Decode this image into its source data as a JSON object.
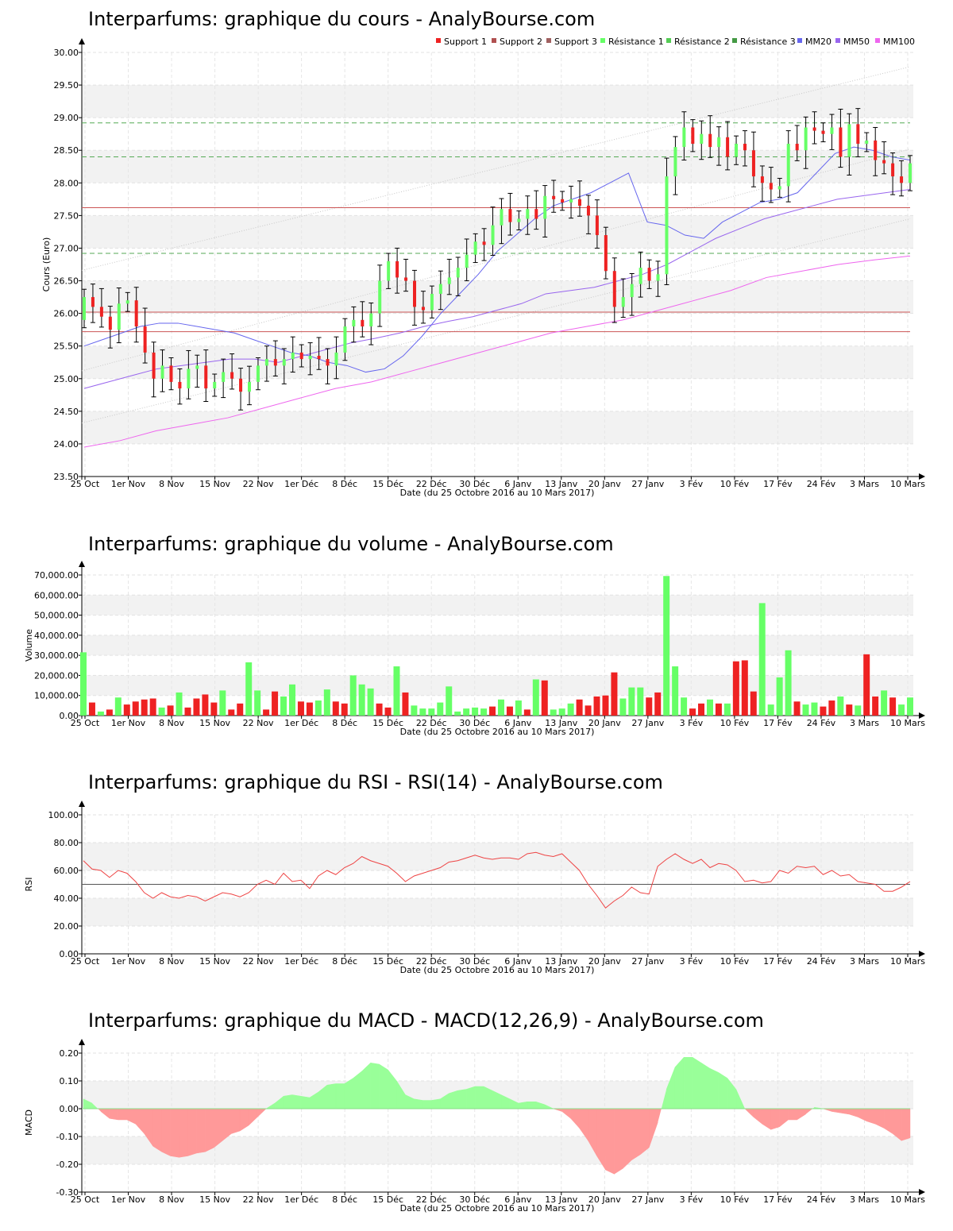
{
  "x_axis": {
    "tick_labels": [
      "25 Oct",
      "1er Nov",
      "8 Nov",
      "15 Nov",
      "22 Nov",
      "1er Déc",
      "8 Déc",
      "15 Déc",
      "22 Déc",
      "30 Déc",
      "6 Janv",
      "13 Janv",
      "20 Janv",
      "27 Janv",
      "3 Fév",
      "10 Fév",
      "17 Fév",
      "24 Fév",
      "3 Mars",
      "10 Mars"
    ],
    "label": "Date (du 25 Octobre 2016 au 10 Mars 2017)"
  },
  "colors": {
    "up": "#66ff66",
    "down": "#ee2222",
    "mm20": "#6666ee",
    "mm50": "#9966ee",
    "mm100": "#ee66ee",
    "support": "#cc5555",
    "resistance": "#55aa55",
    "macd_pos": "#99ff99",
    "macd_neg": "#ff9999",
    "rsi": "#ee4444"
  },
  "chart_data": [
    {
      "type": "candlestick",
      "title": "Interparfums: graphique du cours - AnalyBourse.com",
      "ylabel": "Cours (Euro)",
      "xlabel": "Date (du 25 Octobre 2016 au 10 Mars 2017)",
      "ylim": [
        23.5,
        30.0
      ],
      "yticks": [
        "23.50",
        "24.00",
        "24.50",
        "25.00",
        "25.50",
        "26.00",
        "26.50",
        "27.00",
        "27.50",
        "28.00",
        "28.50",
        "29.00",
        "29.50",
        "30.00"
      ],
      "legend": [
        "Support 1",
        "Support 2",
        "Support 3",
        "Résistance 1",
        "Résistance 2",
        "Résistance 3",
        "MM20",
        "MM50",
        "MM100"
      ],
      "legend_position": "top-right",
      "support_levels": [
        26.02,
        25.72,
        27.62
      ],
      "resistance_levels": [
        28.4,
        26.92,
        28.92
      ],
      "closes": [
        26.25,
        26.1,
        25.95,
        25.75,
        26.15,
        26.2,
        25.8,
        25.4,
        25.0,
        25.2,
        24.95,
        24.85,
        25.15,
        25.2,
        24.85,
        24.95,
        25.1,
        25.0,
        24.8,
        24.95,
        25.2,
        25.3,
        25.2,
        25.3,
        25.4,
        25.3,
        25.35,
        25.3,
        25.2,
        25.4,
        25.8,
        25.9,
        25.8,
        26.0,
        26.5,
        26.8,
        26.55,
        26.5,
        26.1,
        26.05,
        26.3,
        26.45,
        26.55,
        26.7,
        26.9,
        27.1,
        27.05,
        27.35,
        27.6,
        27.4,
        27.45,
        27.6,
        27.45,
        27.8,
        27.75,
        27.7,
        27.75,
        27.65,
        27.5,
        27.2,
        26.65,
        26.1,
        26.25,
        26.45,
        26.7,
        26.5,
        26.6,
        28.1,
        28.55,
        28.85,
        28.6,
        28.75,
        28.55,
        28.7,
        28.4,
        28.6,
        28.5,
        28.1,
        28.0,
        27.9,
        27.95,
        28.6,
        28.5,
        28.85,
        28.8,
        28.75,
        28.85,
        28.4,
        28.9,
        28.6,
        28.65,
        28.35,
        28.3,
        28.1,
        28.0,
        28.3
      ],
      "ma20": [
        25.5,
        25.6,
        25.7,
        25.8,
        25.85,
        25.85,
        25.8,
        25.75,
        25.7,
        25.6,
        25.5,
        25.4,
        25.35,
        25.25,
        25.2,
        25.1,
        25.15,
        25.35,
        25.65,
        26.0,
        26.3,
        26.6,
        26.95,
        27.2,
        27.45,
        27.65,
        27.75,
        27.85,
        28.0,
        28.15,
        27.4,
        27.35,
        27.2,
        27.15,
        27.4,
        27.55,
        27.7,
        27.75,
        27.85,
        28.15,
        28.45,
        28.55,
        28.5,
        28.4,
        28.35
      ],
      "ma50": [
        24.85,
        24.95,
        25.05,
        25.15,
        25.2,
        25.25,
        25.3,
        25.3,
        25.25,
        25.35,
        25.45,
        25.55,
        25.62,
        25.7,
        25.8,
        25.88,
        25.95,
        26.05,
        26.15,
        26.3,
        26.35,
        26.4,
        26.5,
        26.6,
        26.75,
        26.95,
        27.15,
        27.3,
        27.45,
        27.55,
        27.65,
        27.75,
        27.8,
        27.85,
        27.9
      ],
      "ma100": [
        23.95,
        24.05,
        24.2,
        24.3,
        24.4,
        24.55,
        24.7,
        24.85,
        24.95,
        25.1,
        25.25,
        25.4,
        25.55,
        25.7,
        25.8,
        25.9,
        26.05,
        26.2,
        26.35,
        26.55,
        26.65,
        26.75,
        26.82,
        26.88
      ],
      "n": 96
    },
    {
      "type": "bar",
      "title": "Interparfums: graphique du volume - AnalyBourse.com",
      "ylabel": "Volume",
      "xlabel": "Date (du 25 Octobre 2016 au 10 Mars 2017)",
      "ylim": [
        0,
        70000
      ],
      "yticks": [
        "0.00",
        "10,000.00",
        "20,000.00",
        "30,000.00",
        "40,000.00",
        "50,000.00",
        "60,000.00",
        "70,000.00"
      ],
      "values": [
        31500,
        6500,
        2000,
        3000,
        9000,
        5500,
        7000,
        8000,
        8500,
        4000,
        5000,
        11500,
        4000,
        8500,
        10500,
        6500,
        12500,
        3000,
        6000,
        26500,
        12500,
        3000,
        12000,
        9500,
        15500,
        7000,
        6500,
        7500,
        13000,
        7000,
        6000,
        20000,
        15500,
        13500,
        6000,
        4000,
        24500,
        11500,
        5000,
        3500,
        3500,
        6500,
        14500,
        2000,
        3500,
        4000,
        3500,
        4500,
        8000,
        4500,
        7500,
        3000,
        18000,
        17500,
        3000,
        3500,
        6000,
        8000,
        5000,
        9500,
        10000,
        21500,
        8500,
        14000,
        14000,
        9000,
        11500,
        69500,
        24500,
        9000,
        3500,
        6000,
        8000,
        6000,
        6000,
        27000,
        27500,
        12000,
        56000,
        5500,
        19000,
        32500,
        7000,
        5500,
        6500,
        4500,
        7500,
        9500,
        5500,
        5000,
        30500,
        9500,
        12500,
        9000,
        5500,
        9000
      ],
      "colors": [
        "g",
        "r",
        "g",
        "r",
        "g",
        "r",
        "r",
        "r",
        "r",
        "g",
        "r",
        "g",
        "r",
        "r",
        "r",
        "r",
        "g",
        "r",
        "r",
        "g",
        "g",
        "r",
        "r",
        "g",
        "g",
        "r",
        "r",
        "g",
        "g",
        "r",
        "r",
        "g",
        "g",
        "g",
        "r",
        "r",
        "g",
        "r",
        "g",
        "g",
        "g",
        "g",
        "g",
        "g",
        "g",
        "g",
        "g",
        "r",
        "g",
        "r",
        "g",
        "r",
        "g",
        "r",
        "g",
        "g",
        "g",
        "r",
        "r",
        "r",
        "r",
        "r",
        "g",
        "g",
        "g",
        "r",
        "r",
        "g",
        "g",
        "g",
        "r",
        "r",
        "g",
        "r",
        "g",
        "r",
        "r",
        "r",
        "g",
        "g",
        "g",
        "g",
        "r",
        "g",
        "g",
        "r",
        "r",
        "g",
        "r",
        "g",
        "r",
        "r",
        "g",
        "r",
        "g",
        "g"
      ]
    },
    {
      "type": "line",
      "title": "Interparfums: graphique du RSI - RSI(14) - AnalyBourse.com",
      "ylabel": "RSI",
      "xlabel": "Date (du 25 Octobre 2016 au 10 Mars 2017)",
      "ylim": [
        0,
        100
      ],
      "yticks": [
        "0.00",
        "20.00",
        "40.00",
        "60.00",
        "80.00",
        "100.00"
      ],
      "reference_line": 50,
      "values": [
        67,
        61,
        60,
        55,
        60,
        58,
        52,
        44,
        40,
        44,
        41,
        40,
        42,
        41,
        38,
        41,
        44,
        43,
        41,
        44,
        50,
        53,
        50,
        58,
        52,
        53,
        47,
        56,
        60,
        57,
        62,
        65,
        70,
        67,
        65,
        63,
        58,
        52,
        56,
        58,
        60,
        62,
        66,
        67,
        69,
        71,
        69,
        68,
        69,
        69,
        68,
        72,
        73,
        71,
        70,
        72,
        66,
        60,
        50,
        42,
        33,
        38,
        42,
        48,
        44,
        43,
        63,
        68,
        72,
        68,
        65,
        68,
        62,
        65,
        64,
        60,
        52,
        53,
        51,
        52,
        60,
        58,
        63,
        62,
        63,
        57,
        60,
        56,
        57,
        52,
        51,
        50,
        45,
        45,
        48,
        52
      ]
    },
    {
      "type": "area",
      "title": "Interparfums: graphique du MACD - MACD(12,26,9) - AnalyBourse.com",
      "ylabel": "MACD",
      "xlabel": "Date (du 25 Octobre 2016 au 10 Mars 2017)",
      "ylim": [
        -0.3,
        0.2
      ],
      "yticks": [
        "-0.30",
        "-0.20",
        "-0.10",
        "0.00",
        "0.10",
        "0.20"
      ],
      "values": [
        0.035,
        0.02,
        -0.01,
        -0.035,
        -0.04,
        -0.04,
        -0.055,
        -0.09,
        -0.135,
        -0.155,
        -0.17,
        -0.175,
        -0.17,
        -0.16,
        -0.155,
        -0.14,
        -0.115,
        -0.09,
        -0.08,
        -0.06,
        -0.03,
        0.0,
        0.02,
        0.045,
        0.05,
        0.045,
        0.04,
        0.06,
        0.085,
        0.09,
        0.09,
        0.11,
        0.135,
        0.165,
        0.16,
        0.14,
        0.1,
        0.05,
        0.035,
        0.03,
        0.03,
        0.035,
        0.055,
        0.065,
        0.07,
        0.08,
        0.08,
        0.065,
        0.05,
        0.035,
        0.02,
        0.025,
        0.025,
        0.015,
        0.0,
        -0.01,
        -0.035,
        -0.07,
        -0.115,
        -0.17,
        -0.22,
        -0.235,
        -0.215,
        -0.185,
        -0.165,
        -0.14,
        -0.05,
        0.07,
        0.15,
        0.185,
        0.185,
        0.165,
        0.145,
        0.13,
        0.11,
        0.07,
        0.0,
        -0.03,
        -0.055,
        -0.075,
        -0.065,
        -0.04,
        -0.04,
        -0.02,
        0.005,
        0.0,
        -0.01,
        -0.015,
        -0.02,
        -0.03,
        -0.045,
        -0.055,
        -0.07,
        -0.09,
        -0.115,
        -0.105
      ]
    }
  ]
}
